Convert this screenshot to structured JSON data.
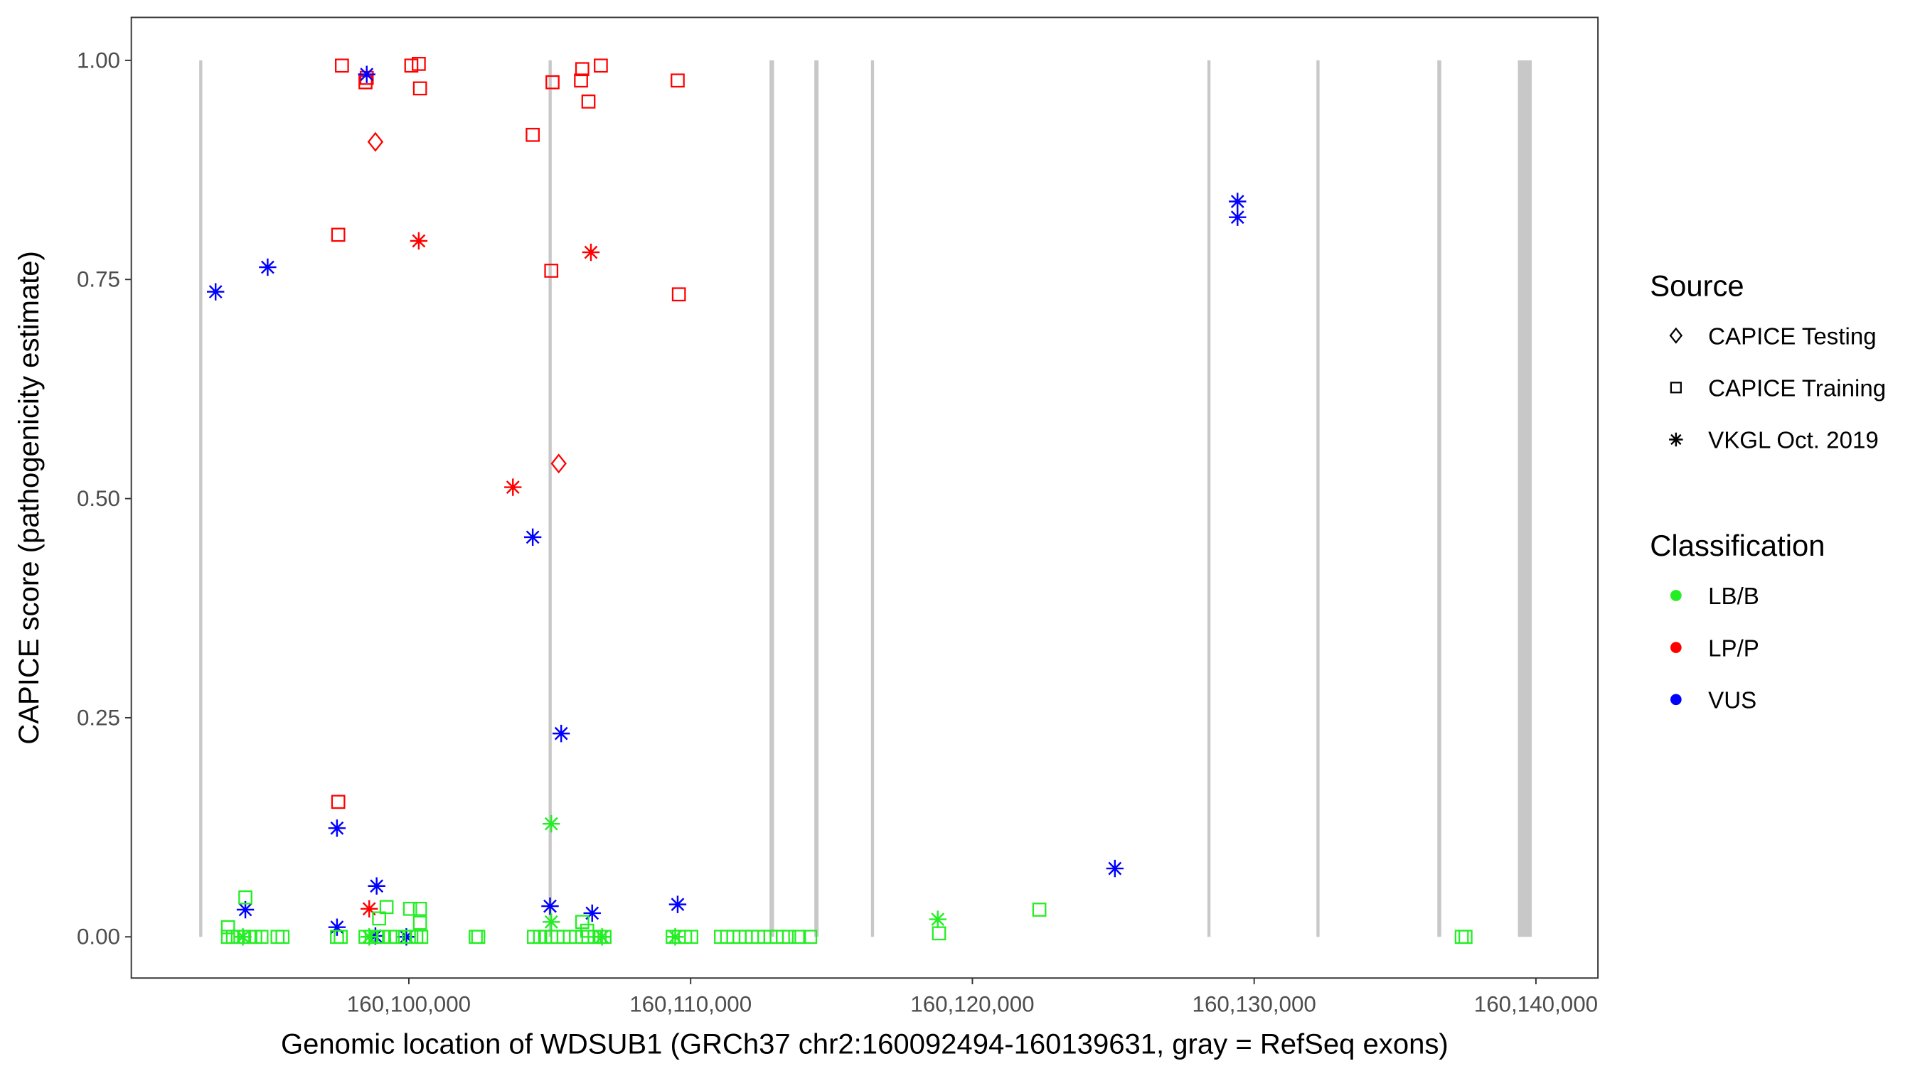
{
  "chart_data": {
    "type": "scatter",
    "xlabel": "Genomic location of WDSUB1 (GRCh37 chr2:160092494-160139631, gray = RefSeq exons)",
    "ylabel": "CAPICE score (pathogenicity estimate)",
    "xlim": [
      160090150,
      160142200
    ],
    "ylim": [
      -0.047,
      1.049
    ],
    "grid": false,
    "x_ticks": [
      160100000,
      160110000,
      160120000,
      160130000,
      160140000
    ],
    "x_tick_labels": [
      "160,100,000",
      "160,110,000",
      "160,120,000",
      "160,130,000",
      "160,140,000"
    ],
    "y_ticks": [
      0,
      0.25,
      0.5,
      0.75,
      1.0
    ],
    "y_tick_labels": [
      "0.00",
      "0.25",
      "0.50",
      "0.75",
      "1.00"
    ],
    "exon_color": "#c8c8c8",
    "exons": [
      [
        160092560,
        160092670
      ],
      [
        160104960,
        160105060
      ],
      [
        160112800,
        160112960
      ],
      [
        160114390,
        160114540
      ],
      [
        160116400,
        160116480
      ],
      [
        160128340,
        160128450
      ],
      [
        160132210,
        160132320
      ],
      [
        160136500,
        160136640
      ],
      [
        160139360,
        160139850
      ]
    ],
    "legend": {
      "placement": "right",
      "source_title": "Source",
      "sources": [
        {
          "label": "CAPICE Testing",
          "shape": "diamond"
        },
        {
          "label": "CAPICE Training",
          "shape": "square"
        },
        {
          "label": "VKGL Oct. 2019",
          "shape": "asterisk"
        }
      ],
      "class_title": "Classification",
      "classes": [
        {
          "label": "LB/B",
          "color": "#22ee22"
        },
        {
          "label": "LP/P",
          "color": "#ff0000"
        },
        {
          "label": "VUS",
          "color": "#0000ff"
        }
      ]
    },
    "point_fields": [
      "position",
      "score",
      "source_index",
      "class_index"
    ],
    "points": [
      [
        160097626,
        0.994,
        1,
        1
      ],
      [
        160098505,
        0.98,
        1,
        1
      ],
      [
        160098461,
        0.975,
        1,
        1
      ],
      [
        160100088,
        0.994,
        1,
        1
      ],
      [
        160100352,
        0.996,
        1,
        1
      ],
      [
        160100396,
        0.968,
        1,
        1
      ],
      [
        160097494,
        0.801,
        1,
        1
      ],
      [
        160105099,
        0.975,
        1,
        1
      ],
      [
        160104396,
        0.915,
        1,
        1
      ],
      [
        160106154,
        0.99,
        1,
        1
      ],
      [
        160106813,
        0.994,
        1,
        1
      ],
      [
        160106110,
        0.977,
        1,
        1
      ],
      [
        160106374,
        0.953,
        1,
        1
      ],
      [
        160109540,
        0.977,
        1,
        1
      ],
      [
        160105055,
        0.76,
        1,
        1
      ],
      [
        160109583,
        0.733,
        1,
        1
      ],
      [
        160097494,
        0.154,
        1,
        1
      ],
      [
        160098813,
        0.907,
        0,
        1
      ],
      [
        160105319,
        0.54,
        0,
        1
      ],
      [
        160100352,
        0.794,
        2,
        1
      ],
      [
        160106462,
        0.781,
        2,
        1
      ],
      [
        160103693,
        0.513,
        2,
        1
      ],
      [
        160098593,
        0.032,
        2,
        1
      ],
      [
        160098505,
        0.984,
        2,
        2
      ],
      [
        160093142,
        0.736,
        2,
        2
      ],
      [
        160094989,
        0.764,
        2,
        2
      ],
      [
        160104396,
        0.456,
        2,
        2
      ],
      [
        160105407,
        0.232,
        2,
        2
      ],
      [
        160097450,
        0.124,
        2,
        2
      ],
      [
        160098857,
        0.058,
        2,
        2
      ],
      [
        160094198,
        0.031,
        2,
        2
      ],
      [
        160097450,
        0.011,
        2,
        2
      ],
      [
        160098813,
        0.001,
        2,
        2
      ],
      [
        160099912,
        0.0,
        2,
        2
      ],
      [
        160105011,
        0.035,
        2,
        2
      ],
      [
        160106506,
        0.027,
        2,
        2
      ],
      [
        160109540,
        0.037,
        2,
        2
      ],
      [
        160125057,
        0.078,
        2,
        2
      ],
      [
        160129409,
        0.839,
        2,
        2
      ],
      [
        160129409,
        0.821,
        2,
        2
      ],
      [
        160105055,
        0.129,
        2,
        0
      ],
      [
        160118771,
        0.02,
        2,
        0
      ],
      [
        160105055,
        0.017,
        2,
        0
      ],
      [
        160094110,
        0.0,
        2,
        0
      ],
      [
        160098593,
        0.0,
        2,
        0
      ],
      [
        160109452,
        0.0,
        2,
        0
      ],
      [
        160106857,
        0.0,
        2,
        0
      ],
      [
        160093582,
        0.011,
        1,
        0
      ],
      [
        160094198,
        0.045,
        1,
        0
      ],
      [
        160099209,
        0.034,
        1,
        0
      ],
      [
        160100044,
        0.032,
        1,
        0
      ],
      [
        160100396,
        0.032,
        1,
        0
      ],
      [
        160100396,
        0.016,
        1,
        0
      ],
      [
        160098945,
        0.021,
        1,
        0
      ],
      [
        160106154,
        0.017,
        1,
        0
      ],
      [
        160106330,
        0.007,
        1,
        0
      ],
      [
        160122376,
        0.031,
        1,
        0
      ],
      [
        160118815,
        0.004,
        1,
        0
      ],
      [
        160137367,
        0.0,
        1,
        0
      ],
      [
        160137500,
        0.0,
        1,
        0
      ],
      [
        160093582,
        0,
        1,
        0
      ],
      [
        160093758,
        0,
        1,
        0
      ],
      [
        160093934,
        0,
        1,
        0
      ],
      [
        160094154,
        0,
        1,
        0
      ],
      [
        160094374,
        0,
        1,
        0
      ],
      [
        160094550,
        0,
        1,
        0
      ],
      [
        160094769,
        0,
        1,
        0
      ],
      [
        160095341,
        0,
        1,
        0
      ],
      [
        160095517,
        0,
        1,
        0
      ],
      [
        160097450,
        0,
        1,
        0
      ],
      [
        160097582,
        0,
        1,
        0
      ],
      [
        160098461,
        0,
        1,
        0
      ],
      [
        160098681,
        0,
        1,
        0
      ],
      [
        160098857,
        0,
        1,
        0
      ],
      [
        160099077,
        0,
        1,
        0
      ],
      [
        160099341,
        0,
        1,
        0
      ],
      [
        160099560,
        0,
        1,
        0
      ],
      [
        160099868,
        0,
        1,
        0
      ],
      [
        160100088,
        0,
        1,
        0
      ],
      [
        160100264,
        0,
        1,
        0
      ],
      [
        160100440,
        0,
        1,
        0
      ],
      [
        160102374,
        0,
        1,
        0
      ],
      [
        160102462,
        0,
        1,
        0
      ],
      [
        160104440,
        0,
        1,
        0
      ],
      [
        160104659,
        0,
        1,
        0
      ],
      [
        160104835,
        0,
        1,
        0
      ],
      [
        160105055,
        0,
        1,
        0
      ],
      [
        160105275,
        0,
        1,
        0
      ],
      [
        160105495,
        0,
        1,
        0
      ],
      [
        160105714,
        0,
        1,
        0
      ],
      [
        160105934,
        0,
        1,
        0
      ],
      [
        160106154,
        0,
        1,
        0
      ],
      [
        160106374,
        0,
        1,
        0
      ],
      [
        160106593,
        0,
        1,
        0
      ],
      [
        160106769,
        0,
        1,
        0
      ],
      [
        160106945,
        0,
        1,
        0
      ],
      [
        160109364,
        0,
        1,
        0
      ],
      [
        160109583,
        0,
        1,
        0
      ],
      [
        160109803,
        0,
        1,
        0
      ],
      [
        160110023,
        0,
        1,
        0
      ],
      [
        160111078,
        0,
        1,
        0
      ],
      [
        160111297,
        0,
        1,
        0
      ],
      [
        160111517,
        0,
        1,
        0
      ],
      [
        160111737,
        0,
        1,
        0
      ],
      [
        160111956,
        0,
        1,
        0
      ],
      [
        160112176,
        0,
        1,
        0
      ],
      [
        160112396,
        0,
        1,
        0
      ],
      [
        160112616,
        0,
        1,
        0
      ],
      [
        160112835,
        0,
        1,
        0
      ],
      [
        160113055,
        0,
        1,
        0
      ],
      [
        160113275,
        0,
        1,
        0
      ],
      [
        160113495,
        0,
        1,
        0
      ],
      [
        160113846,
        0,
        1,
        0
      ],
      [
        160114242,
        0,
        1,
        0
      ]
    ]
  }
}
